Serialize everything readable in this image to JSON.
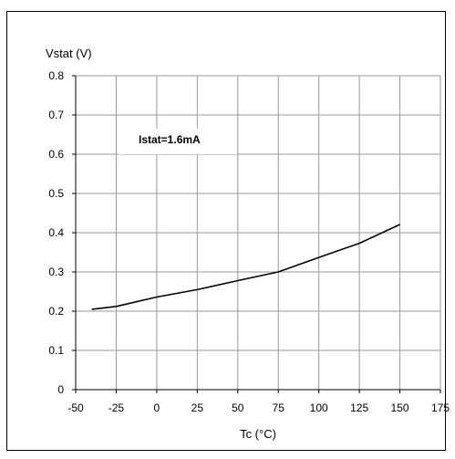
{
  "chart_data": {
    "type": "line",
    "title": "",
    "xlabel": "Tc (°C)",
    "ylabel": "Vstat (V)",
    "annotation": "Istat=1.6mA",
    "xlim": [
      -50,
      175
    ],
    "ylim": [
      0,
      0.8
    ],
    "x_ticks": [
      "-50",
      "-25",
      "0",
      "25",
      "50",
      "75",
      "100",
      "125",
      "150",
      "175"
    ],
    "y_ticks": [
      "0",
      "0.1",
      "0.2",
      "0.3",
      "0.4",
      "0.5",
      "0.6",
      "0.7",
      "0.8"
    ],
    "grid": true,
    "legend": "none",
    "series": [
      {
        "x": [
          -40,
          -25,
          0,
          25,
          50,
          75,
          100,
          125,
          150
        ],
        "y": [
          0.205,
          0.212,
          0.236,
          0.255,
          0.278,
          0.3,
          0.337,
          0.373,
          0.421
        ]
      }
    ],
    "colors": {
      "line": "#000000",
      "grid": "#999999",
      "axis": "#000000"
    }
  }
}
